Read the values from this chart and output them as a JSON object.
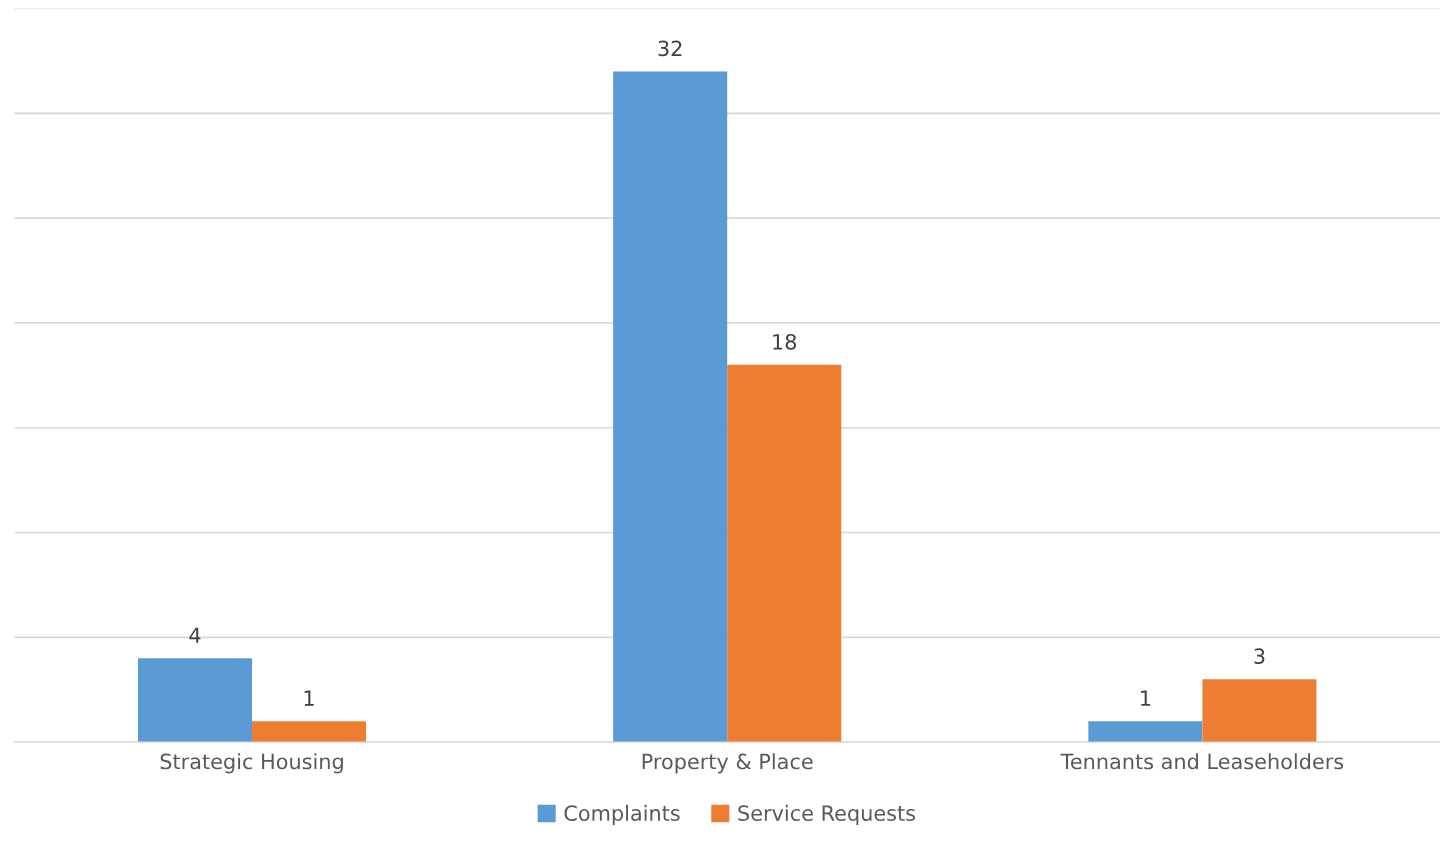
{
  "chart_data": {
    "type": "bar",
    "categories": [
      "Strategic Housing",
      "Property & Place",
      "Tennants and Leaseholders"
    ],
    "series": [
      {
        "name": "Complaints",
        "color": "#5b9bd5",
        "values": [
          4,
          32,
          1
        ]
      },
      {
        "name": "Service Requests",
        "color": "#ed7d31",
        "values": [
          1,
          18,
          3
        ]
      }
    ],
    "ylim": [
      0,
      35
    ],
    "yticks": [
      {
        "value": 0,
        "label": null
      },
      {
        "value": 5,
        "label": null
      },
      {
        "value": 10,
        "label": null
      },
      {
        "value": 15,
        "label": null
      },
      {
        "value": 20,
        "label": null
      },
      {
        "value": 25,
        "label": null
      },
      {
        "value": 30,
        "label": null
      },
      {
        "value": 35,
        "label": null
      }
    ],
    "grid": "y",
    "legend": "bottom",
    "data_labels": true,
    "tick_labels": "x"
  }
}
